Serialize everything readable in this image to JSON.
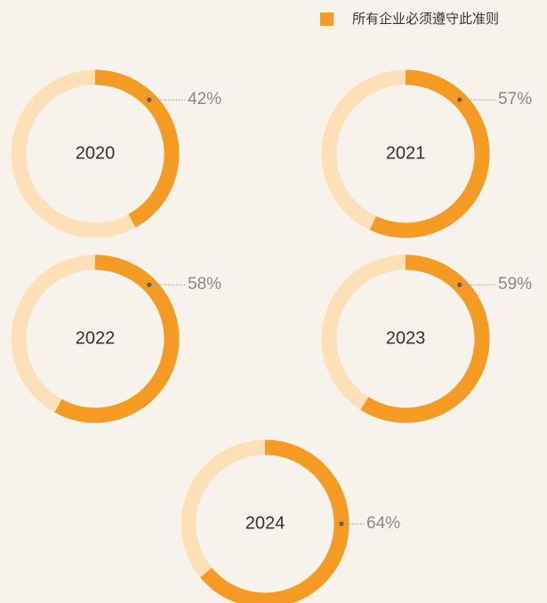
{
  "legend": {
    "label": "所有企业必须遵守此准则",
    "color": "#f59a23"
  },
  "chart_data": [
    {
      "type": "donut",
      "title": "2020",
      "values": [
        42
      ],
      "value_labels": [
        "42%"
      ],
      "color": "#f59a23",
      "track_color": "#fddfb8"
    },
    {
      "type": "donut",
      "title": "2021",
      "values": [
        57
      ],
      "value_labels": [
        "57%"
      ],
      "color": "#f59a23",
      "track_color": "#fddfb8"
    },
    {
      "type": "donut",
      "title": "2022",
      "values": [
        58
      ],
      "value_labels": [
        "58%"
      ],
      "color": "#f59a23",
      "track_color": "#fddfb8"
    },
    {
      "type": "donut",
      "title": "2023",
      "values": [
        59
      ],
      "value_labels": [
        "59%"
      ],
      "color": "#f59a23",
      "track_color": "#fddfb8"
    },
    {
      "type": "donut",
      "title": "2024",
      "values": [
        64
      ],
      "value_labels": [
        "64%"
      ],
      "color": "#f59a23",
      "track_color": "#fddfb8"
    }
  ]
}
